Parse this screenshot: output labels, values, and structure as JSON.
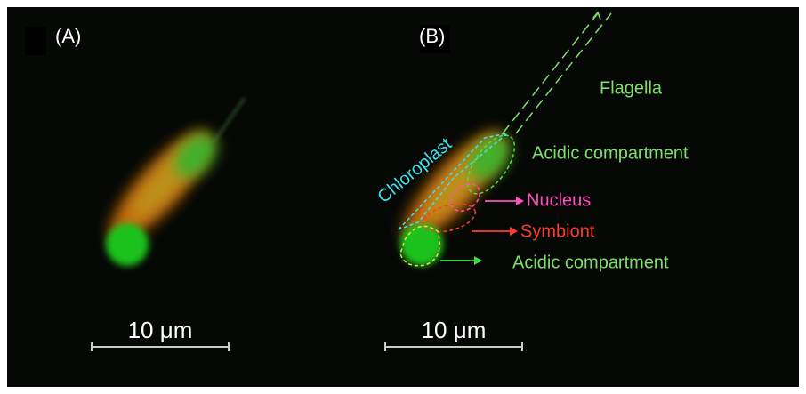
{
  "panels": [
    {
      "label": "(A)",
      "scale_bar": "10 μm"
    },
    {
      "label": "(B)",
      "scale_bar": "10 μm"
    }
  ],
  "annotations": [
    "Flagella",
    "Chloroplast",
    "Acidic compartment",
    "Nucleus",
    "Symbiont",
    "Acidic compartment"
  ]
}
